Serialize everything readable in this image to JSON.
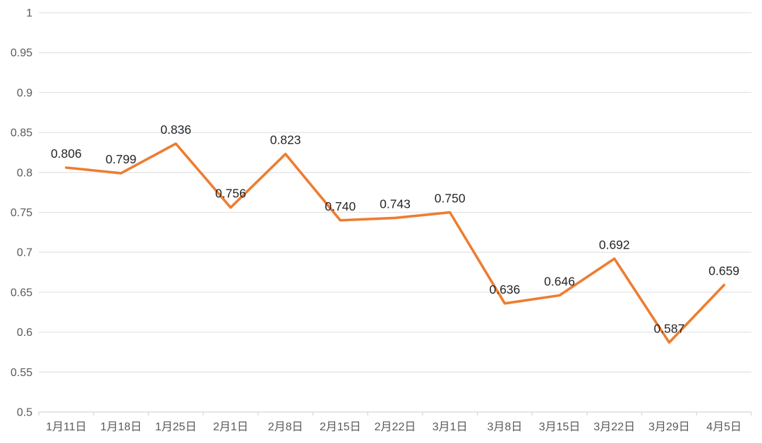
{
  "chart_data": {
    "type": "line",
    "title": "",
    "xlabel": "",
    "ylabel": "",
    "categories": [
      "1月11日",
      "1月18日",
      "1月25日",
      "2月1日",
      "2月8日",
      "2月15日",
      "2月22日",
      "3月1日",
      "3月8日",
      "3月15日",
      "3月22日",
      "3月29日",
      "4月5日"
    ],
    "values": [
      0.806,
      0.799,
      0.836,
      0.756,
      0.823,
      0.74,
      0.743,
      0.75,
      0.636,
      0.646,
      0.692,
      0.587,
      0.659
    ],
    "data_labels": [
      "0.806",
      "0.799",
      "0.836",
      "0.756",
      "0.823",
      "0.740",
      "0.743",
      "0.750",
      "0.636",
      "0.646",
      "0.692",
      "0.587",
      "0.659"
    ],
    "ylim": [
      0.5,
      1
    ],
    "y_ticks": [
      1,
      0.95,
      0.9,
      0.85,
      0.8,
      0.75,
      0.7,
      0.65,
      0.6,
      0.55,
      0.5
    ],
    "y_tick_labels": [
      "1",
      "0.95",
      "0.9",
      "0.85",
      "0.8",
      "0.75",
      "0.7",
      "0.65",
      "0.6",
      "0.55",
      "0.5"
    ],
    "grid": true,
    "legend": "none",
    "colors": {
      "line": "#ED7D31",
      "data_label": "#262626",
      "axis_text": "#595959",
      "gridline": "#E4E4E9",
      "axis_line": "#D9D9D9",
      "background": "#FFFFFF"
    }
  }
}
